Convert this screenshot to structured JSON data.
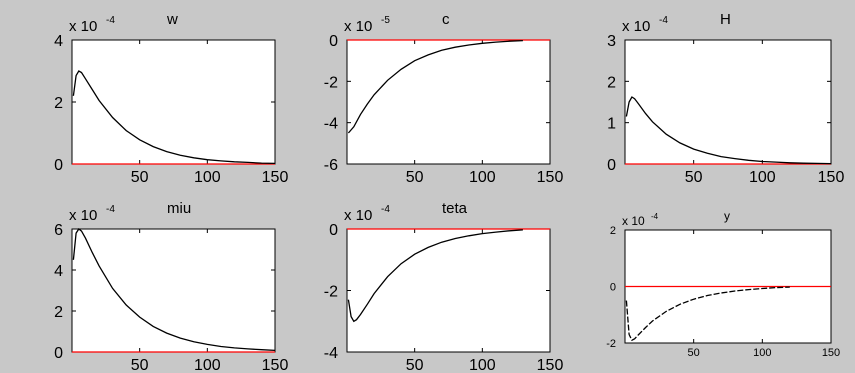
{
  "figure": {
    "background": "#c8c8c8",
    "axes_background": "#ffffff",
    "zero_line_color": "#ff0000",
    "curve_color": "#000000"
  },
  "chart_data": [
    {
      "type": "line",
      "title": "w",
      "exponent": "x 10",
      "exponent_power": "-4",
      "xlim": [
        0,
        150
      ],
      "ylim": [
        0,
        4
      ],
      "xticks": [
        50,
        100,
        150
      ],
      "xtick_labels": [
        "50",
        "100",
        "150"
      ],
      "yticks": [
        0,
        2,
        4
      ],
      "ytick_labels": [
        "0",
        "2",
        "4"
      ],
      "zero_line": true,
      "x": [
        1,
        3,
        5,
        7,
        10,
        15,
        20,
        30,
        40,
        50,
        60,
        70,
        80,
        90,
        100,
        110,
        120,
        130,
        140,
        150
      ],
      "y": [
        2.2,
        2.85,
        3.0,
        2.95,
        2.75,
        2.4,
        2.05,
        1.5,
        1.08,
        0.78,
        0.56,
        0.4,
        0.28,
        0.2,
        0.14,
        0.1,
        0.07,
        0.05,
        0.03,
        0.02
      ]
    },
    {
      "type": "line",
      "title": "c",
      "exponent": "x 10",
      "exponent_power": "-5",
      "xlim": [
        0,
        150
      ],
      "ylim": [
        -6,
        0
      ],
      "xticks": [
        50,
        100,
        150
      ],
      "xtick_labels": [
        "50",
        "100",
        "150"
      ],
      "yticks": [
        -6,
        -4,
        -2,
        0
      ],
      "ytick_labels": [
        "-6",
        "-4",
        "-2",
        "0"
      ],
      "zero_line": true,
      "x": [
        1,
        5,
        10,
        15,
        20,
        30,
        40,
        50,
        60,
        70,
        80,
        90,
        100,
        110,
        120,
        130
      ],
      "y": [
        -4.5,
        -4.2,
        -3.6,
        -3.1,
        -2.65,
        -1.95,
        -1.42,
        -1.0,
        -0.72,
        -0.5,
        -0.35,
        -0.24,
        -0.16,
        -0.1,
        -0.06,
        -0.03
      ]
    },
    {
      "type": "line",
      "title": "H",
      "exponent": "x 10",
      "exponent_power": "-4",
      "xlim": [
        0,
        150
      ],
      "ylim": [
        0,
        3
      ],
      "xticks": [
        50,
        100,
        150
      ],
      "xtick_labels": [
        "50",
        "100",
        "150"
      ],
      "yticks": [
        0,
        1,
        2,
        3
      ],
      "ytick_labels": [
        "0",
        "1",
        "2",
        "3"
      ],
      "zero_line": true,
      "x": [
        1,
        3,
        5,
        7,
        10,
        15,
        20,
        30,
        40,
        50,
        60,
        70,
        80,
        90,
        100,
        110,
        120,
        130,
        140,
        150
      ],
      "y": [
        1.15,
        1.5,
        1.62,
        1.58,
        1.45,
        1.22,
        1.02,
        0.72,
        0.51,
        0.36,
        0.26,
        0.18,
        0.13,
        0.09,
        0.06,
        0.045,
        0.03,
        0.02,
        0.015,
        0.01
      ]
    },
    {
      "type": "line",
      "title": "miu",
      "exponent": "x 10",
      "exponent_power": "-4",
      "xlim": [
        0,
        150
      ],
      "ylim": [
        0,
        6
      ],
      "xticks": [
        50,
        100,
        150
      ],
      "xtick_labels": [
        "50",
        "100",
        "150"
      ],
      "yticks": [
        0,
        2,
        4,
        6
      ],
      "ytick_labels": [
        "0",
        "2",
        "4",
        "6"
      ],
      "zero_line": true,
      "x": [
        1,
        3,
        5,
        7,
        10,
        15,
        20,
        30,
        40,
        50,
        60,
        70,
        80,
        90,
        100,
        110,
        120,
        130,
        140,
        150
      ],
      "y": [
        4.5,
        5.8,
        6.0,
        5.9,
        5.55,
        4.85,
        4.2,
        3.1,
        2.3,
        1.7,
        1.25,
        0.92,
        0.68,
        0.5,
        0.37,
        0.27,
        0.2,
        0.15,
        0.11,
        0.08
      ]
    },
    {
      "type": "line",
      "title": "teta",
      "exponent": "x 10",
      "exponent_power": "-4",
      "xlim": [
        0,
        150
      ],
      "ylim": [
        -4,
        0
      ],
      "xticks": [
        50,
        100,
        150
      ],
      "xtick_labels": [
        "50",
        "100",
        "150"
      ],
      "yticks": [
        -4,
        -2,
        0
      ],
      "ytick_labels": [
        "-4",
        "-2",
        "0"
      ],
      "zero_line": true,
      "x": [
        1,
        3,
        5,
        7,
        10,
        15,
        20,
        30,
        40,
        50,
        60,
        70,
        80,
        90,
        100,
        110,
        120,
        130
      ],
      "y": [
        -2.3,
        -2.85,
        -3.0,
        -2.95,
        -2.78,
        -2.45,
        -2.1,
        -1.55,
        -1.13,
        -0.82,
        -0.6,
        -0.43,
        -0.31,
        -0.22,
        -0.15,
        -0.1,
        -0.06,
        -0.03
      ]
    },
    {
      "type": "line",
      "title": "y",
      "exponent": "x 10",
      "exponent_power": "-4",
      "xlim": [
        0,
        150
      ],
      "ylim": [
        -2,
        2
      ],
      "xticks": [
        50,
        100,
        150
      ],
      "xtick_labels": [
        "50",
        "100",
        "150"
      ],
      "yticks": [
        -2,
        0,
        2
      ],
      "ytick_labels": [
        "-2",
        "0",
        "2"
      ],
      "zero_line": true,
      "x": [
        1,
        3,
        5,
        7,
        10,
        15,
        20,
        30,
        40,
        50,
        60,
        70,
        80,
        90,
        100,
        110,
        120
      ],
      "y": [
        -0.5,
        -1.7,
        -1.9,
        -1.85,
        -1.7,
        -1.45,
        -1.22,
        -0.88,
        -0.63,
        -0.45,
        -0.32,
        -0.23,
        -0.16,
        -0.11,
        -0.07,
        -0.04,
        -0.02
      ]
    }
  ]
}
